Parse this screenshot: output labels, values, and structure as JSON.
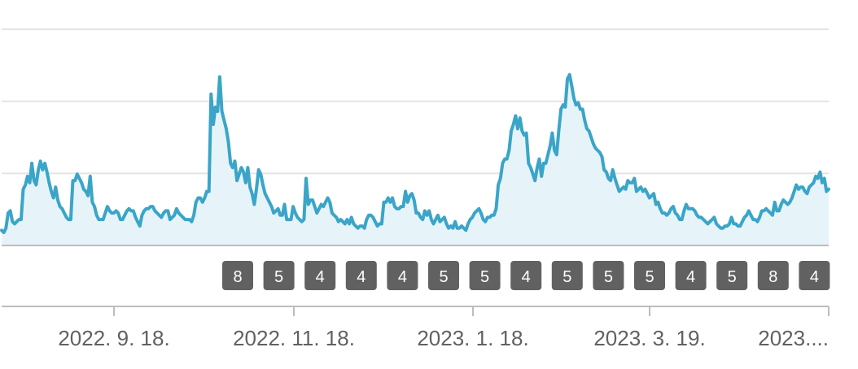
{
  "chart_data": {
    "type": "area",
    "title": "",
    "xlabel": "",
    "ylabel": "",
    "grid": true,
    "legend": "none",
    "colors": {
      "line": "#3aa5c8",
      "fill": "#e6f4fa",
      "grid": "#e4e4e4",
      "axis": "#bdbdbd",
      "badge": "#616161",
      "badge_text": "#ffffff",
      "label": "#616161"
    },
    "x_tick_labels": [
      "2022. 9. 18.",
      "2022. 11. 18.",
      "2023. 1. 18.",
      "2023. 3. 19.",
      "2023...."
    ],
    "ylim": [
      0,
      100
    ],
    "series": [
      {
        "values": [
          7,
          6,
          8,
          15,
          16,
          11,
          10,
          11,
          12,
          12,
          26,
          28,
          32,
          29,
          38,
          30,
          28,
          35,
          39,
          35,
          38,
          34,
          29,
          25,
          22,
          27,
          21,
          18,
          17,
          15,
          13,
          12,
          12,
          30,
          30,
          33,
          31,
          29,
          26,
          25,
          23,
          32,
          20,
          18,
          14,
          12,
          12,
          12,
          15,
          18,
          16,
          15,
          15,
          16,
          15,
          12,
          12,
          14,
          16,
          17,
          16,
          16,
          13,
          11,
          9,
          14,
          16,
          17,
          17,
          18,
          18,
          16,
          15,
          14,
          13,
          15,
          16,
          16,
          12,
          13,
          14,
          17,
          15,
          14,
          13,
          12,
          12,
          12,
          11,
          14,
          20,
          22,
          22,
          20,
          22,
          25,
          25,
          70,
          56,
          64,
          62,
          78,
          62,
          58,
          54,
          48,
          38,
          36,
          39,
          30,
          33,
          36,
          34,
          29,
          36,
          27,
          24,
          19,
          26,
          35,
          33,
          28,
          24,
          22,
          20,
          18,
          15,
          16,
          17,
          14,
          14,
          19,
          12,
          12,
          12,
          18,
          15,
          13,
          12,
          11,
          12,
          31,
          19,
          21,
          21,
          18,
          15,
          17,
          19,
          18,
          20,
          22,
          20,
          15,
          14,
          13,
          11,
          12,
          11,
          10,
          12,
          10,
          13,
          10,
          9,
          8,
          9,
          9,
          8,
          12,
          14,
          14,
          13,
          11,
          9,
          10,
          10,
          20,
          20,
          22,
          20,
          22,
          18,
          17,
          17,
          18,
          18,
          25,
          20,
          23,
          24,
          21,
          15,
          15,
          13,
          12,
          16,
          14,
          16,
          12,
          10,
          12,
          14,
          11,
          12,
          13,
          10,
          8,
          9,
          8,
          11,
          8,
          8,
          9,
          8,
          7,
          10,
          12,
          13,
          15,
          16,
          17,
          15,
          12,
          11,
          13,
          13,
          14,
          14,
          17,
          28,
          31,
          38,
          40,
          40,
          44,
          53,
          56,
          60,
          54,
          59,
          53,
          51,
          52,
          38,
          36,
          33,
          30,
          36,
          40,
          32,
          38,
          38,
          42,
          46,
          52,
          44,
          42,
          53,
          63,
          65,
          64,
          77,
          79,
          74,
          68,
          65,
          66,
          63,
          63,
          58,
          54,
          53,
          50,
          47,
          45,
          44,
          43,
          41,
          35,
          34,
          31,
          30,
          35,
          31,
          28,
          25,
          26,
          27,
          26,
          30,
          29,
          29,
          31,
          25,
          26,
          27,
          25,
          26,
          24,
          22,
          23,
          24,
          19,
          20,
          17,
          15,
          15,
          14,
          15,
          17,
          18,
          15,
          14,
          12,
          12,
          16,
          19,
          17,
          17,
          17,
          16,
          14,
          13,
          13,
          12,
          11,
          10,
          11,
          12,
          13,
          10,
          9,
          8,
          8,
          9,
          9,
          10,
          13,
          10,
          10,
          9,
          9,
          11,
          13,
          14,
          16,
          14,
          12,
          12,
          11,
          13,
          16,
          16,
          17,
          16,
          15,
          14,
          20,
          16,
          16,
          19,
          21,
          20,
          19,
          20,
          22,
          25,
          28,
          26,
          27,
          27,
          25,
          24,
          27,
          28,
          29,
          32,
          31,
          34,
          29,
          31,
          25,
          26
        ]
      }
    ],
    "badges": [
      "8",
      "5",
      "4",
      "4",
      "4",
      "5",
      "5",
      "4",
      "5",
      "5",
      "5",
      "4",
      "5",
      "8",
      "4"
    ]
  }
}
